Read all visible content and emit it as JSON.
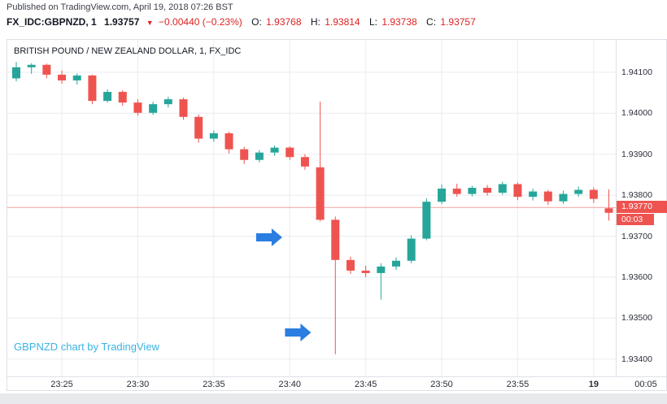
{
  "published_line": "Published on TradingView.com, April 19, 2018 07:26 BST",
  "header": {
    "symbol": "FX_IDC:GBPNZD, 1",
    "last_price": "1.93757",
    "direction_icon": "▼",
    "change": "−0.00440 (−0.23%)",
    "ohlc": [
      {
        "label": "O:",
        "value": "1.93768"
      },
      {
        "label": "H:",
        "value": "1.93814"
      },
      {
        "label": "L:",
        "value": "1.93738"
      },
      {
        "label": "C:",
        "value": "1.93757"
      }
    ]
  },
  "chart": {
    "title": "BRITISH POUND / NEW ZEALAND DOLLAR, 1, FX_IDC",
    "attribution": "GBPNZD chart by TradingView",
    "price_badge": "1.93770",
    "countdown": "00:03",
    "price_axis_labels": [
      "1.94100",
      "1.94000",
      "1.93900",
      "1.93800",
      "1.93700",
      "1.93600",
      "1.93500",
      "1.93400"
    ],
    "time_labels": [
      {
        "label": "23:25",
        "idx": 3,
        "bold": false
      },
      {
        "label": "23:30",
        "idx": 8,
        "bold": false
      },
      {
        "label": "23:35",
        "idx": 13,
        "bold": false
      },
      {
        "label": "23:40",
        "idx": 18,
        "bold": false
      },
      {
        "label": "23:45",
        "idx": 23,
        "bold": false
      },
      {
        "label": "23:50",
        "idx": 28,
        "bold": false
      },
      {
        "label": "23:55",
        "idx": 33,
        "bold": false
      },
      {
        "label": "19",
        "idx": 38,
        "bold": true
      },
      {
        "label": "00:05",
        "idx": 43,
        "bold": false
      }
    ]
  },
  "colors": {
    "up": "#26a69a",
    "down": "#ef5350",
    "grid": "#e9ebf0",
    "border": "#dde0e7",
    "arrow_blue": "#2a7de1",
    "attribution_blue": "#3bb3e4",
    "badge_red": "#ef5350",
    "header_red": "#dd2222",
    "price_line": "rgba(239,83,80,0.55)"
  },
  "chart_data": {
    "type": "candlestick",
    "symbol": "GBPNZD",
    "interval_minutes": 1,
    "ylim": [
      1.93358,
      1.94179
    ],
    "current_price": 1.9377,
    "annotations": [
      {
        "type": "arrow-right",
        "idx": 17.5,
        "price": 1.93697
      },
      {
        "type": "arrow-right",
        "idx": 19.4,
        "price": 1.93465
      }
    ],
    "candles": [
      {
        "t": "23:22",
        "o": 1.94085,
        "h": 1.94125,
        "l": 1.94078,
        "c": 1.94112
      },
      {
        "t": "23:23",
        "o": 1.94112,
        "h": 1.94122,
        "l": 1.94096,
        "c": 1.94118
      },
      {
        "t": "23:24",
        "o": 1.94118,
        "h": 1.94121,
        "l": 1.94085,
        "c": 1.94094
      },
      {
        "t": "23:25",
        "o": 1.94094,
        "h": 1.94104,
        "l": 1.94072,
        "c": 1.9408
      },
      {
        "t": "23:26",
        "o": 1.9408,
        "h": 1.94097,
        "l": 1.9407,
        "c": 1.94092
      },
      {
        "t": "23:27",
        "o": 1.94092,
        "h": 1.94094,
        "l": 1.94022,
        "c": 1.9403
      },
      {
        "t": "23:28",
        "o": 1.9403,
        "h": 1.94058,
        "l": 1.94026,
        "c": 1.94052
      },
      {
        "t": "23:29",
        "o": 1.94052,
        "h": 1.94056,
        "l": 1.94018,
        "c": 1.94026
      },
      {
        "t": "23:30",
        "o": 1.94026,
        "h": 1.94034,
        "l": 1.93994,
        "c": 1.94001
      },
      {
        "t": "23:31",
        "o": 1.94001,
        "h": 1.94028,
        "l": 1.93996,
        "c": 1.94022
      },
      {
        "t": "23:32",
        "o": 1.94022,
        "h": 1.9404,
        "l": 1.94014,
        "c": 1.94034
      },
      {
        "t": "23:33",
        "o": 1.94034,
        "h": 1.94038,
        "l": 1.93984,
        "c": 1.93991
      },
      {
        "t": "23:34",
        "o": 1.93991,
        "h": 1.93997,
        "l": 1.93928,
        "c": 1.93938
      },
      {
        "t": "23:35",
        "o": 1.93938,
        "h": 1.93958,
        "l": 1.9393,
        "c": 1.93951
      },
      {
        "t": "23:36",
        "o": 1.93951,
        "h": 1.93955,
        "l": 1.93902,
        "c": 1.93912
      },
      {
        "t": "23:37",
        "o": 1.93912,
        "h": 1.93918,
        "l": 1.93876,
        "c": 1.93886
      },
      {
        "t": "23:38",
        "o": 1.93886,
        "h": 1.9391,
        "l": 1.9388,
        "c": 1.93904
      },
      {
        "t": "23:39",
        "o": 1.93904,
        "h": 1.93921,
        "l": 1.93896,
        "c": 1.93916
      },
      {
        "t": "23:40",
        "o": 1.93916,
        "h": 1.93919,
        "l": 1.93886,
        "c": 1.93893
      },
      {
        "t": "23:41",
        "o": 1.93893,
        "h": 1.939,
        "l": 1.93862,
        "c": 1.9387
      },
      {
        "t": "23:42",
        "o": 1.93868,
        "h": 1.94028,
        "l": 1.93736,
        "c": 1.9374
      },
      {
        "t": "23:43",
        "o": 1.9374,
        "h": 1.93748,
        "l": 1.93412,
        "c": 1.93642
      },
      {
        "t": "23:44",
        "o": 1.93642,
        "h": 1.9365,
        "l": 1.93608,
        "c": 1.93616
      },
      {
        "t": "23:45",
        "o": 1.93616,
        "h": 1.93628,
        "l": 1.936,
        "c": 1.9361
      },
      {
        "t": "23:46",
        "o": 1.9361,
        "h": 1.93634,
        "l": 1.93545,
        "c": 1.93626
      },
      {
        "t": "23:47",
        "o": 1.93626,
        "h": 1.93648,
        "l": 1.93618,
        "c": 1.9364
      },
      {
        "t": "23:48",
        "o": 1.9364,
        "h": 1.93702,
        "l": 1.93634,
        "c": 1.93694
      },
      {
        "t": "23:49",
        "o": 1.93694,
        "h": 1.93792,
        "l": 1.9369,
        "c": 1.93784
      },
      {
        "t": "23:50",
        "o": 1.93784,
        "h": 1.93826,
        "l": 1.93778,
        "c": 1.93816
      },
      {
        "t": "23:51",
        "o": 1.93816,
        "h": 1.93828,
        "l": 1.93796,
        "c": 1.93803
      },
      {
        "t": "23:52",
        "o": 1.93803,
        "h": 1.93823,
        "l": 1.93797,
        "c": 1.93818
      },
      {
        "t": "23:53",
        "o": 1.93818,
        "h": 1.93825,
        "l": 1.93799,
        "c": 1.93806
      },
      {
        "t": "23:54",
        "o": 1.93806,
        "h": 1.93833,
        "l": 1.93801,
        "c": 1.93827
      },
      {
        "t": "23:55",
        "o": 1.93827,
        "h": 1.93831,
        "l": 1.93788,
        "c": 1.93796
      },
      {
        "t": "23:56",
        "o": 1.93796,
        "h": 1.93816,
        "l": 1.93787,
        "c": 1.93809
      },
      {
        "t": "23:57",
        "o": 1.93809,
        "h": 1.93813,
        "l": 1.93776,
        "c": 1.93785
      },
      {
        "t": "23:58",
        "o": 1.93785,
        "h": 1.93811,
        "l": 1.93779,
        "c": 1.93803
      },
      {
        "t": "23:59",
        "o": 1.93803,
        "h": 1.93821,
        "l": 1.93796,
        "c": 1.93813
      },
      {
        "t": "00:00",
        "o": 1.93813,
        "h": 1.93819,
        "l": 1.93781,
        "c": 1.93791
      },
      {
        "t": "00:01",
        "o": 1.93768,
        "h": 1.93814,
        "l": 1.93738,
        "c": 1.93757
      }
    ]
  }
}
